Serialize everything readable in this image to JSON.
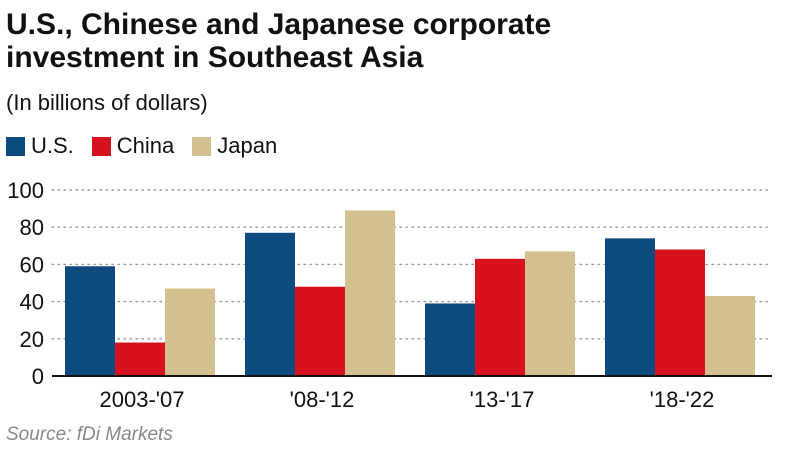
{
  "header": {
    "title_line1": "U.S., Chinese and Japanese corporate",
    "title_line2": "investment in Southeast Asia",
    "subtitle": "(In billions of dollars)"
  },
  "footer": {
    "source": "Source: fDi Markets"
  },
  "chart_data": {
    "type": "bar",
    "title": "U.S., Chinese and Japanese corporate investment in Southeast Asia",
    "subtitle": "(In billions of dollars)",
    "categories": [
      "2003-'07",
      "'08-'12",
      "'13-'17",
      "'18-'22"
    ],
    "series": [
      {
        "name": "U.S.",
        "color": "#0d4a80",
        "values": [
          59,
          77,
          39,
          74
        ]
      },
      {
        "name": "China",
        "color": "#d8111f",
        "values": [
          18,
          48,
          63,
          68
        ]
      },
      {
        "name": "Japan",
        "color": "#d4c08e",
        "values": [
          47,
          89,
          67,
          43
        ]
      }
    ],
    "ylim": [
      0,
      100
    ],
    "yticks": [
      0,
      20,
      40,
      60,
      80,
      100
    ],
    "grid": true,
    "legend": "top-left"
  }
}
